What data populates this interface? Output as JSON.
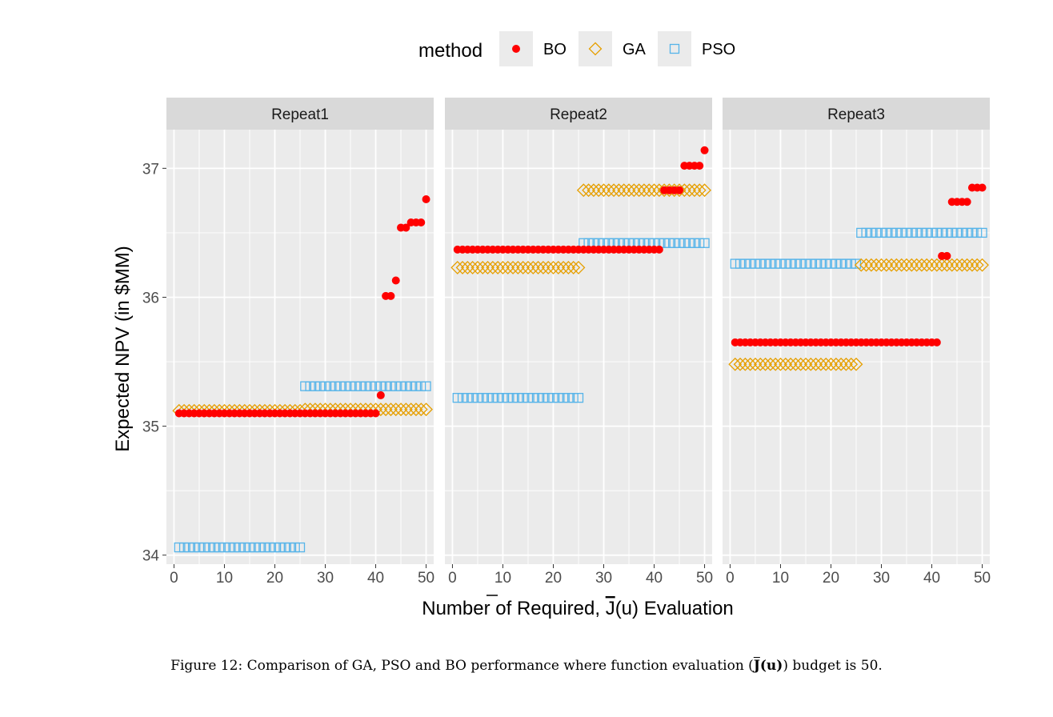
{
  "chart_data": {
    "type": "scatter",
    "legend": {
      "title": "method",
      "position": "top",
      "entries": [
        {
          "name": "BO",
          "shape": "filled-circle",
          "color": "#ff0000"
        },
        {
          "name": "GA",
          "shape": "open-diamond",
          "color": "#e69f00"
        },
        {
          "name": "PSO",
          "shape": "open-square",
          "color": "#56b4e9"
        }
      ]
    },
    "xlabel_main": "Number of Required, ",
    "xlabel_J": "J",
    "xlabel_tail": "(u) Evaluation",
    "ylabel": "Expected NPV (in $MM)",
    "xlim": [
      -1.5,
      51.5
    ],
    "ylim": [
      33.93,
      37.3
    ],
    "xticks": [
      0,
      10,
      20,
      30,
      40,
      50
    ],
    "yticks": [
      34,
      35,
      36,
      37
    ],
    "grid": true,
    "panels": [
      {
        "title": "Repeat1",
        "series": [
          {
            "name": "BO",
            "values": [
              35.1,
              35.1,
              35.1,
              35.1,
              35.1,
              35.1,
              35.1,
              35.1,
              35.1,
              35.1,
              35.1,
              35.1,
              35.1,
              35.1,
              35.1,
              35.1,
              35.1,
              35.1,
              35.1,
              35.1,
              35.1,
              35.1,
              35.1,
              35.1,
              35.1,
              35.1,
              35.1,
              35.1,
              35.1,
              35.1,
              35.1,
              35.1,
              35.1,
              35.1,
              35.1,
              35.1,
              35.1,
              35.1,
              35.1,
              35.1,
              35.24,
              36.01,
              36.01,
              36.13,
              36.54,
              36.54,
              36.58,
              36.58,
              36.58,
              36.76
            ]
          },
          {
            "name": "GA",
            "values": [
              35.12,
              35.12,
              35.12,
              35.12,
              35.12,
              35.12,
              35.12,
              35.12,
              35.12,
              35.12,
              35.12,
              35.12,
              35.12,
              35.12,
              35.12,
              35.12,
              35.12,
              35.12,
              35.12,
              35.12,
              35.12,
              35.12,
              35.12,
              35.12,
              35.12,
              35.13,
              35.13,
              35.13,
              35.13,
              35.13,
              35.13,
              35.13,
              35.13,
              35.13,
              35.13,
              35.13,
              35.13,
              35.13,
              35.13,
              35.13,
              35.13,
              35.13,
              35.13,
              35.13,
              35.13,
              35.13,
              35.13,
              35.13,
              35.13,
              35.13
            ]
          },
          {
            "name": "PSO",
            "values": [
              34.06,
              34.06,
              34.06,
              34.06,
              34.06,
              34.06,
              34.06,
              34.06,
              34.06,
              34.06,
              34.06,
              34.06,
              34.06,
              34.06,
              34.06,
              34.06,
              34.06,
              34.06,
              34.06,
              34.06,
              34.06,
              34.06,
              34.06,
              34.06,
              34.06,
              35.31,
              35.31,
              35.31,
              35.31,
              35.31,
              35.31,
              35.31,
              35.31,
              35.31,
              35.31,
              35.31,
              35.31,
              35.31,
              35.31,
              35.31,
              35.31,
              35.31,
              35.31,
              35.31,
              35.31,
              35.31,
              35.31,
              35.31,
              35.31,
              35.31
            ]
          }
        ]
      },
      {
        "title": "Repeat2",
        "series": [
          {
            "name": "BO",
            "values": [
              36.37,
              36.37,
              36.37,
              36.37,
              36.37,
              36.37,
              36.37,
              36.37,
              36.37,
              36.37,
              36.37,
              36.37,
              36.37,
              36.37,
              36.37,
              36.37,
              36.37,
              36.37,
              36.37,
              36.37,
              36.37,
              36.37,
              36.37,
              36.37,
              36.37,
              36.37,
              36.37,
              36.37,
              36.37,
              36.37,
              36.37,
              36.37,
              36.37,
              36.37,
              36.37,
              36.37,
              36.37,
              36.37,
              36.37,
              36.37,
              36.37,
              36.83,
              36.83,
              36.83,
              36.83,
              37.02,
              37.02,
              37.02,
              37.02,
              37.14
            ]
          },
          {
            "name": "GA",
            "values": [
              36.23,
              36.23,
              36.23,
              36.23,
              36.23,
              36.23,
              36.23,
              36.23,
              36.23,
              36.23,
              36.23,
              36.23,
              36.23,
              36.23,
              36.23,
              36.23,
              36.23,
              36.23,
              36.23,
              36.23,
              36.23,
              36.23,
              36.23,
              36.23,
              36.23,
              36.83,
              36.83,
              36.83,
              36.83,
              36.83,
              36.83,
              36.83,
              36.83,
              36.83,
              36.83,
              36.83,
              36.83,
              36.83,
              36.83,
              36.83,
              36.83,
              36.83,
              36.83,
              36.83,
              36.83,
              36.83,
              36.83,
              36.83,
              36.83,
              36.83
            ]
          },
          {
            "name": "PSO",
            "values": [
              35.22,
              35.22,
              35.22,
              35.22,
              35.22,
              35.22,
              35.22,
              35.22,
              35.22,
              35.22,
              35.22,
              35.22,
              35.22,
              35.22,
              35.22,
              35.22,
              35.22,
              35.22,
              35.22,
              35.22,
              35.22,
              35.22,
              35.22,
              35.22,
              35.22,
              36.42,
              36.42,
              36.42,
              36.42,
              36.42,
              36.42,
              36.42,
              36.42,
              36.42,
              36.42,
              36.42,
              36.42,
              36.42,
              36.42,
              36.42,
              36.42,
              36.42,
              36.42,
              36.42,
              36.42,
              36.42,
              36.42,
              36.42,
              36.42,
              36.42
            ]
          }
        ]
      },
      {
        "title": "Repeat3",
        "series": [
          {
            "name": "BO",
            "values": [
              35.65,
              35.65,
              35.65,
              35.65,
              35.65,
              35.65,
              35.65,
              35.65,
              35.65,
              35.65,
              35.65,
              35.65,
              35.65,
              35.65,
              35.65,
              35.65,
              35.65,
              35.65,
              35.65,
              35.65,
              35.65,
              35.65,
              35.65,
              35.65,
              35.65,
              35.65,
              35.65,
              35.65,
              35.65,
              35.65,
              35.65,
              35.65,
              35.65,
              35.65,
              35.65,
              35.65,
              35.65,
              35.65,
              35.65,
              35.65,
              35.65,
              36.32,
              36.32,
              36.74,
              36.74,
              36.74,
              36.74,
              36.85,
              36.85,
              36.85
            ]
          },
          {
            "name": "GA",
            "values": [
              35.48,
              35.48,
              35.48,
              35.48,
              35.48,
              35.48,
              35.48,
              35.48,
              35.48,
              35.48,
              35.48,
              35.48,
              35.48,
              35.48,
              35.48,
              35.48,
              35.48,
              35.48,
              35.48,
              35.48,
              35.48,
              35.48,
              35.48,
              35.48,
              35.48,
              36.25,
              36.25,
              36.25,
              36.25,
              36.25,
              36.25,
              36.25,
              36.25,
              36.25,
              36.25,
              36.25,
              36.25,
              36.25,
              36.25,
              36.25,
              36.25,
              36.25,
              36.25,
              36.25,
              36.25,
              36.25,
              36.25,
              36.25,
              36.25,
              36.25
            ]
          },
          {
            "name": "PSO",
            "values": [
              36.26,
              36.26,
              36.26,
              36.26,
              36.26,
              36.26,
              36.26,
              36.26,
              36.26,
              36.26,
              36.26,
              36.26,
              36.26,
              36.26,
              36.26,
              36.26,
              36.26,
              36.26,
              36.26,
              36.26,
              36.26,
              36.26,
              36.26,
              36.26,
              36.26,
              36.5,
              36.5,
              36.5,
              36.5,
              36.5,
              36.5,
              36.5,
              36.5,
              36.5,
              36.5,
              36.5,
              36.5,
              36.5,
              36.5,
              36.5,
              36.5,
              36.5,
              36.5,
              36.5,
              36.5,
              36.5,
              36.5,
              36.5,
              36.5,
              36.5
            ]
          }
        ]
      }
    ]
  },
  "caption": {
    "prefix": "Figure 12: Comparison of GA, PSO and BO performance where function evaluation (",
    "J": "J",
    "u": "(u)",
    "suffix": ") budget is 50."
  }
}
